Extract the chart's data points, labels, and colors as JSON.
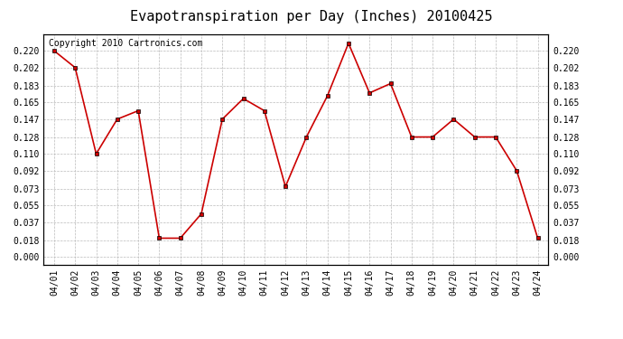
{
  "title": "Evapotranspiration per Day (Inches) 20100425",
  "copyright": "Copyright 2010 Cartronics.com",
  "dates": [
    "04/01",
    "04/02",
    "04/03",
    "04/04",
    "04/05",
    "04/06",
    "04/07",
    "04/08",
    "04/09",
    "04/10",
    "04/11",
    "04/12",
    "04/13",
    "04/14",
    "04/15",
    "04/16",
    "04/17",
    "04/18",
    "04/19",
    "04/20",
    "04/21",
    "04/22",
    "04/23",
    "04/24"
  ],
  "values": [
    0.22,
    0.202,
    0.11,
    0.147,
    0.156,
    0.02,
    0.02,
    0.046,
    0.147,
    0.169,
    0.156,
    0.075,
    0.128,
    0.172,
    0.228,
    0.175,
    0.185,
    0.128,
    0.128,
    0.147,
    0.128,
    0.128,
    0.092,
    0.02
  ],
  "line_color": "#cc0000",
  "marker": "s",
  "marker_size": 3,
  "bg_color": "#ffffff",
  "grid_color": "#bbbbbb",
  "yticks": [
    0.0,
    0.018,
    0.037,
    0.055,
    0.073,
    0.092,
    0.11,
    0.128,
    0.147,
    0.165,
    0.183,
    0.202,
    0.22
  ],
  "ylim": [
    -0.008,
    0.238
  ],
  "title_fontsize": 11,
  "tick_fontsize": 7,
  "copyright_fontsize": 7
}
